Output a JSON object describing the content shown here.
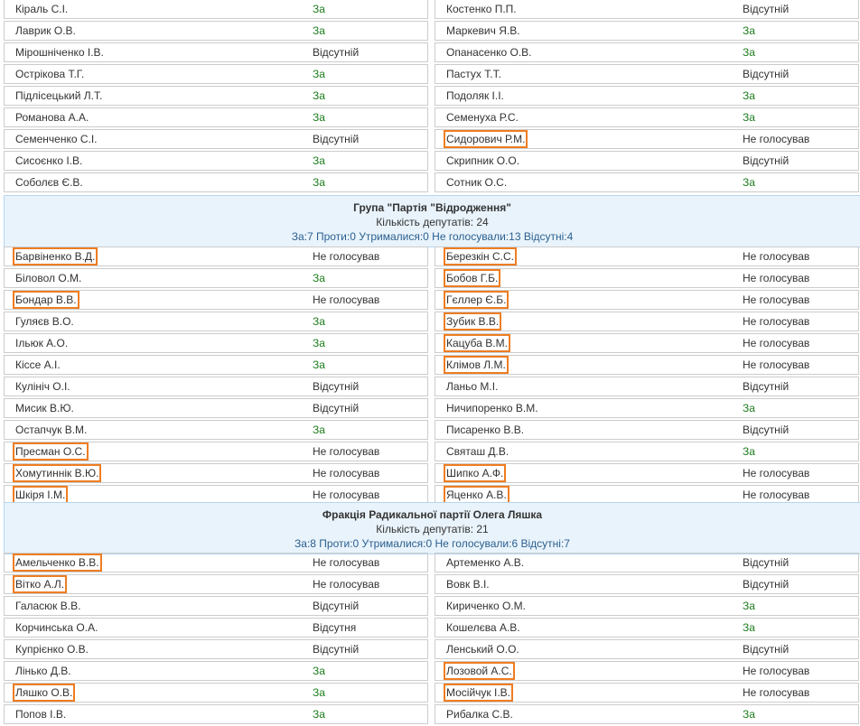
{
  "colors": {
    "vote_for": "#1c7d1c",
    "highlight": "#ee7d22",
    "header_bg": "#e9f3fb",
    "stats_text": "#2a5f8f"
  },
  "block1": {
    "left": [
      {
        "name": "Кіраль С.І.",
        "vote": "За",
        "za": true,
        "hl": false
      },
      {
        "name": "Лаврик О.В.",
        "vote": "За",
        "za": true,
        "hl": false
      },
      {
        "name": "Мірошніченко І.В.",
        "vote": "Відсутній",
        "za": false,
        "hl": false
      },
      {
        "name": "Острікова Т.Г.",
        "vote": "За",
        "za": true,
        "hl": false
      },
      {
        "name": "Підлісецький Л.Т.",
        "vote": "За",
        "za": true,
        "hl": false
      },
      {
        "name": "Романова А.А.",
        "vote": "За",
        "za": true,
        "hl": false
      },
      {
        "name": "Семенченко С.І.",
        "vote": "Відсутній",
        "za": false,
        "hl": false
      },
      {
        "name": "Сисоєнко І.В.",
        "vote": "За",
        "za": true,
        "hl": false
      },
      {
        "name": "Соболєв Є.В.",
        "vote": "За",
        "za": true,
        "hl": false
      }
    ],
    "right": [
      {
        "name": "Костенко П.П.",
        "vote": "Відсутній",
        "za": false,
        "hl": false
      },
      {
        "name": "Маркевич Я.В.",
        "vote": "За",
        "za": true,
        "hl": false
      },
      {
        "name": "Опанасенко О.В.",
        "vote": "За",
        "za": true,
        "hl": false
      },
      {
        "name": "Пастух Т.Т.",
        "vote": "Відсутній",
        "za": false,
        "hl": false
      },
      {
        "name": "Подоляк І.І.",
        "vote": "За",
        "za": true,
        "hl": false
      },
      {
        "name": "Семенуха Р.С.",
        "vote": "За",
        "za": true,
        "hl": false
      },
      {
        "name": "Сидорович Р.М.",
        "vote": "Не голосував",
        "za": false,
        "hl": true
      },
      {
        "name": "Скрипник О.О.",
        "vote": "Відсутній",
        "za": false,
        "hl": false
      },
      {
        "name": "Сотник О.С.",
        "vote": "За",
        "za": true,
        "hl": false
      }
    ]
  },
  "group2": {
    "title": "Група \"Партія \"Відродження\"",
    "count": "Кількість депутатів: 24",
    "stats": "За:7 Проти:0 Утрималися:0 Не голосували:13 Відсутні:4",
    "left": [
      {
        "name": "Барвіненко В.Д.",
        "vote": "Не голосував",
        "za": false,
        "hl": true
      },
      {
        "name": "Біловол О.М.",
        "vote": "За",
        "za": true,
        "hl": false
      },
      {
        "name": "Бондар В.В.",
        "vote": "Не голосував",
        "za": false,
        "hl": true
      },
      {
        "name": "Гуляєв В.О.",
        "vote": "За",
        "za": true,
        "hl": false
      },
      {
        "name": "Ільюк А.О.",
        "vote": "За",
        "za": true,
        "hl": false
      },
      {
        "name": "Кіссе А.І.",
        "vote": "За",
        "za": true,
        "hl": false
      },
      {
        "name": "Кулініч О.І.",
        "vote": "Відсутній",
        "za": false,
        "hl": false
      },
      {
        "name": "Мисик В.Ю.",
        "vote": "Відсутній",
        "za": false,
        "hl": false
      },
      {
        "name": "Остапчук В.М.",
        "vote": "За",
        "za": true,
        "hl": false
      },
      {
        "name": "Пресман О.С.",
        "vote": "Не голосував",
        "za": false,
        "hl": true
      },
      {
        "name": "Хомутиннік В.Ю.",
        "vote": "Не голосував",
        "za": false,
        "hl": true
      },
      {
        "name": "Шкіря І.М.",
        "vote": "Не голосував",
        "za": false,
        "hl": true
      }
    ],
    "right": [
      {
        "name": "Березкін С.С.",
        "vote": "Не голосував",
        "za": false,
        "hl": true
      },
      {
        "name": "Бобов Г.Б.",
        "vote": "Не голосував",
        "za": false,
        "hl": true
      },
      {
        "name": "Гєллер Є.Б.",
        "vote": "Не голосував",
        "za": false,
        "hl": true
      },
      {
        "name": "Зубик В.В.",
        "vote": "Не голосував",
        "za": false,
        "hl": true
      },
      {
        "name": "Кацуба В.М.",
        "vote": "Не голосував",
        "za": false,
        "hl": true
      },
      {
        "name": "Клімов Л.М.",
        "vote": "Не голосував",
        "za": false,
        "hl": true
      },
      {
        "name": "Ланьо М.І.",
        "vote": "Відсутній",
        "za": false,
        "hl": false
      },
      {
        "name": "Ничипоренко В.М.",
        "vote": "За",
        "za": true,
        "hl": false
      },
      {
        "name": "Писаренко В.В.",
        "vote": "Відсутній",
        "za": false,
        "hl": false
      },
      {
        "name": "Святаш Д.В.",
        "vote": "За",
        "za": true,
        "hl": false
      },
      {
        "name": "Шипко А.Ф.",
        "vote": "Не голосував",
        "za": false,
        "hl": true
      },
      {
        "name": "Яценко А.В.",
        "vote": "Не голосував",
        "za": false,
        "hl": true
      }
    ]
  },
  "group3": {
    "title": "Фракція Радикальної партії Олега Ляшка",
    "count": "Кількість депутатів: 21",
    "stats": "За:8 Проти:0 Утрималися:0 Не голосували:6 Відсутні:7",
    "left": [
      {
        "name": "Амельченко В.В.",
        "vote": "Не голосував",
        "za": false,
        "hl": true
      },
      {
        "name": "Вітко А.Л.",
        "vote": "Не голосував",
        "za": false,
        "hl": true
      },
      {
        "name": "Галасюк В.В.",
        "vote": "Відсутній",
        "za": false,
        "hl": false
      },
      {
        "name": "Корчинська О.А.",
        "vote": "Відсутня",
        "za": false,
        "hl": false
      },
      {
        "name": "Купрієнко О.В.",
        "vote": "Відсутній",
        "za": false,
        "hl": false
      },
      {
        "name": "Лінько Д.В.",
        "vote": "За",
        "za": true,
        "hl": false
      },
      {
        "name": "Ляшко О.В.",
        "vote": "За",
        "za": true,
        "hl": true
      },
      {
        "name": "Попов І.В.",
        "vote": "За",
        "za": true,
        "hl": false
      }
    ],
    "right": [
      {
        "name": "Артеменко А.В.",
        "vote": "Відсутній",
        "za": false,
        "hl": false
      },
      {
        "name": "Вовк В.І.",
        "vote": "Відсутній",
        "za": false,
        "hl": false
      },
      {
        "name": "Кириченко О.М.",
        "vote": "За",
        "za": true,
        "hl": false
      },
      {
        "name": "Кошелєва А.В.",
        "vote": "За",
        "za": true,
        "hl": false
      },
      {
        "name": "Ленський О.О.",
        "vote": "Відсутній",
        "za": false,
        "hl": false
      },
      {
        "name": "Лозовой А.С.",
        "vote": "Не голосував",
        "za": false,
        "hl": true
      },
      {
        "name": "Мосійчук І.В.",
        "vote": "Не голосував",
        "za": false,
        "hl": true
      },
      {
        "name": "Рибалка С.В.",
        "vote": "За",
        "za": true,
        "hl": false
      }
    ]
  }
}
